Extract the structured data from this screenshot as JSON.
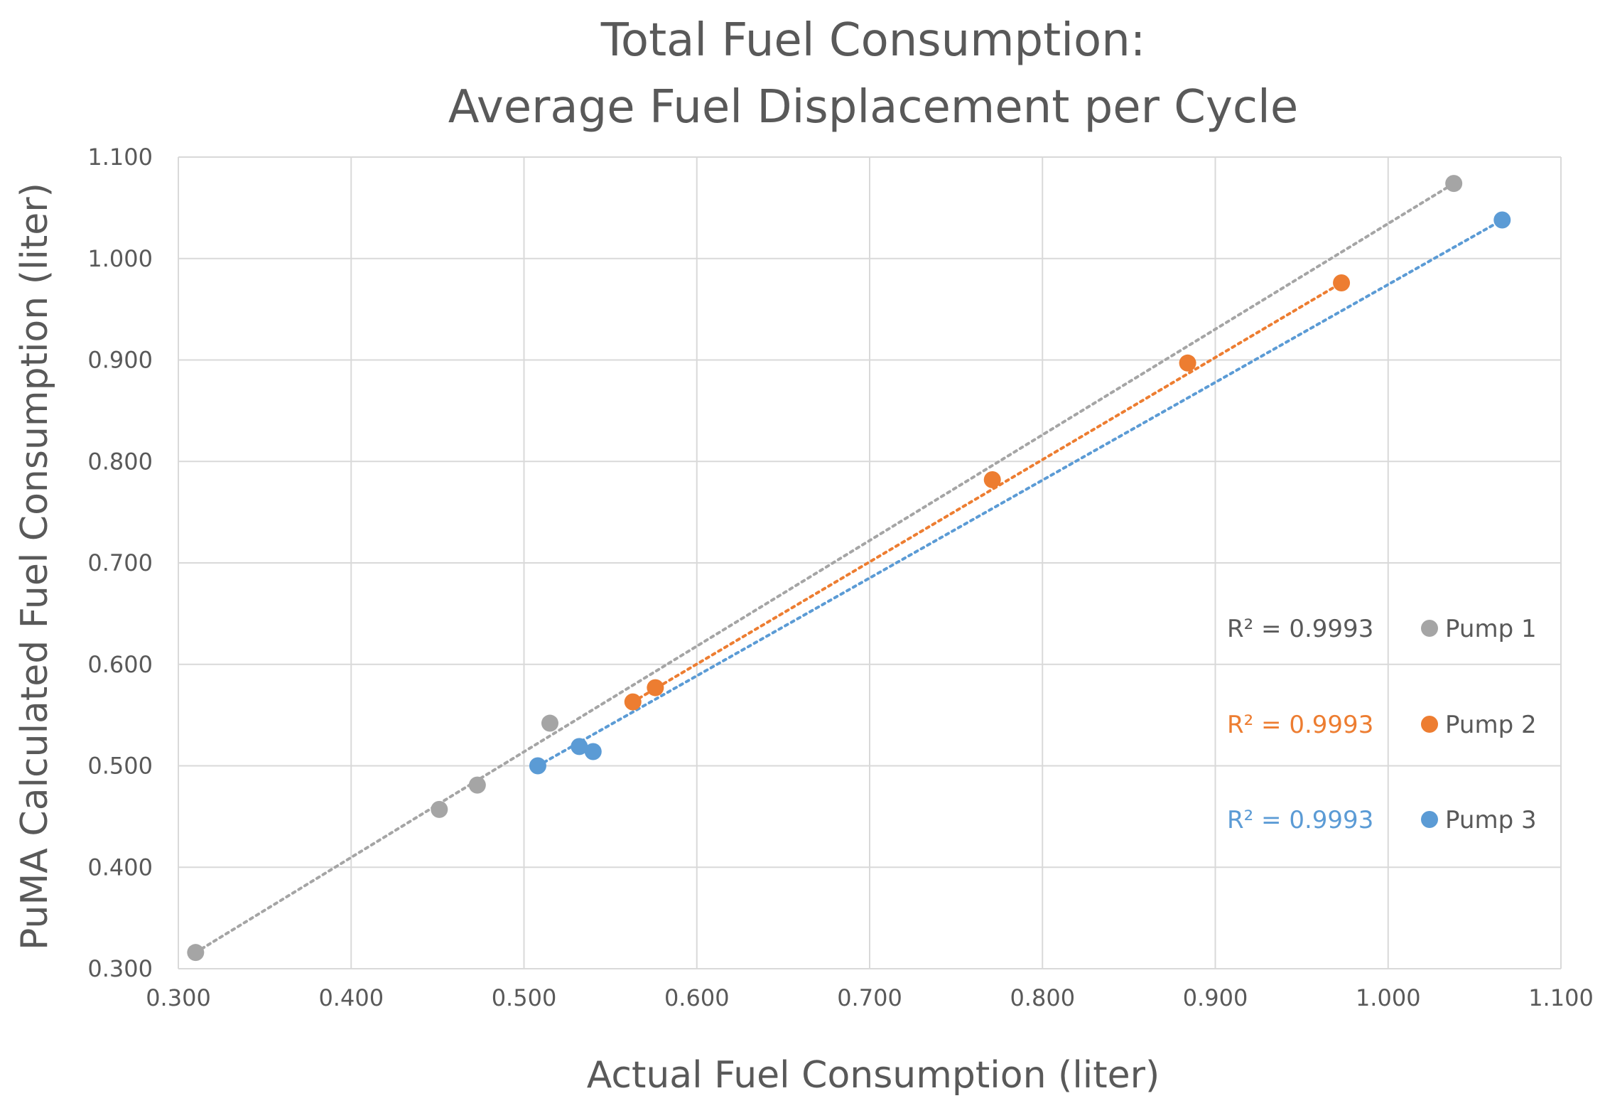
{
  "chart_data": {
    "type": "scatter",
    "title": [
      "Total Fuel Consumption:",
      "Average Fuel Displacement per Cycle"
    ],
    "xlabel": "Actual Fuel Consumption (liter)",
    "ylabel": "PuMA Calculated Fuel Consumption (liter)",
    "xlim": [
      0.3,
      1.1
    ],
    "ylim": [
      0.3,
      1.1
    ],
    "x_ticks": [
      "0.300",
      "0.400",
      "0.500",
      "0.600",
      "0.700",
      "0.800",
      "0.900",
      "1.000",
      "1.100"
    ],
    "y_ticks": [
      "0.300",
      "0.400",
      "0.500",
      "0.600",
      "0.700",
      "0.800",
      "0.900",
      "1.000",
      "1.100"
    ],
    "grid": true,
    "legend_position": "right",
    "series": [
      {
        "name": "Pump 1",
        "color": "#A5A5A5",
        "r2_label": "R² = 0.9993",
        "r2_color": "#595959",
        "x": [
          0.31,
          0.451,
          0.473,
          0.515,
          1.038
        ],
        "y": [
          0.316,
          0.457,
          0.481,
          0.542,
          1.074
        ],
        "trend": [
          [
            0.31,
            0.316
          ],
          [
            1.038,
            1.074
          ]
        ]
      },
      {
        "name": "Pump 2",
        "color": "#ED7D31",
        "r2_label": "R² = 0.9993",
        "r2_color": "#ED7D31",
        "x": [
          0.563,
          0.576,
          0.771,
          0.884,
          0.973
        ],
        "y": [
          0.563,
          0.577,
          0.782,
          0.897,
          0.976
        ],
        "trend": [
          [
            0.563,
            0.563
          ],
          [
            0.973,
            0.976
          ]
        ]
      },
      {
        "name": "Pump 3",
        "color": "#5B9BD5",
        "r2_label": "R² = 0.9993",
        "r2_color": "#5B9BD5",
        "x": [
          0.508,
          0.532,
          0.54,
          1.066
        ],
        "y": [
          0.5,
          0.519,
          0.514,
          1.038
        ],
        "trend": [
          [
            0.508,
            0.5
          ],
          [
            1.066,
            1.038
          ]
        ]
      }
    ]
  }
}
